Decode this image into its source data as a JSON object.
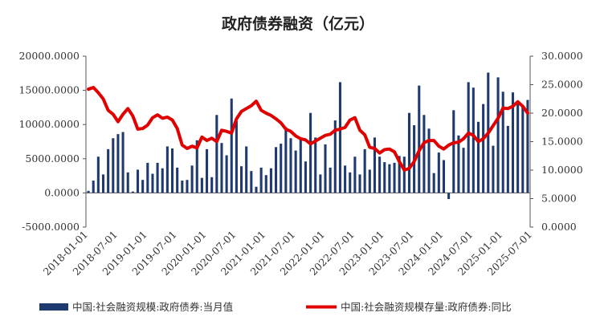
{
  "chart_data": {
    "type": "bar+line",
    "title": "政府债券融资（亿元）",
    "x_tick_labels": [
      "2018-01-01",
      "2018-07-01",
      "2019-01-01",
      "2019-07-01",
      "2020-01-01",
      "2020-07-01",
      "2021-01-01",
      "2021-07-01",
      "2022-01-01",
      "2022-07-01",
      "2023-01-01",
      "2023-07-01",
      "2024-01-01",
      "2024-07-01",
      "2025-01-01",
      "2025-07-01"
    ],
    "y_left": {
      "ticks": [
        "20000.0000",
        "15000.0000",
        "10000.0000",
        "5000.0000",
        "0.0000",
        "-5000.0000"
      ],
      "range": [
        -5000,
        20000
      ]
    },
    "y_right": {
      "ticks": [
        "30.0000",
        "25.0000",
        "20.0000",
        "15.0000",
        "10.0000",
        "5.0000",
        "0.0000"
      ],
      "range": [
        0,
        30
      ]
    },
    "series": [
      {
        "name": "中国:社会融资规模:政府债券:当月值",
        "kind": "bar",
        "axis": "left",
        "color": "#1f3a6e",
        "values": [
          300,
          1800,
          5300,
          2700,
          6400,
          8000,
          8600,
          8900,
          3000,
          200,
          3400,
          1900,
          4400,
          2800,
          4400,
          3600,
          6800,
          6500,
          3700,
          1800,
          1900,
          4000,
          7700,
          2200,
          6400,
          2300,
          11400,
          7300,
          5500,
          13800,
          10500,
          3900,
          6800,
          3200,
          900,
          3700,
          2600,
          3600,
          6700,
          7200,
          9600,
          8000,
          6200,
          7900,
          4600,
          11700,
          8100,
          2700,
          7100,
          3700,
          10600,
          16200,
          4000,
          3000,
          5300,
          2700,
          6400,
          3400,
          8100,
          5300,
          4500,
          4200,
          4400,
          5400,
          5300,
          11700,
          9900,
          15700,
          11400,
          9400,
          2900,
          5900,
          4800,
          -900,
          12100,
          8400,
          6600,
          16200,
          15400,
          10400,
          13000,
          17600,
          6900,
          16900,
          14800,
          9800,
          14700,
          13400,
          12700,
          13600
        ]
      },
      {
        "name": "中国:社会融资规模存量:政府债券:同比",
        "kind": "line",
        "axis": "right",
        "color": "#e00000",
        "values": [
          24.2,
          24.5,
          23.6,
          22.5,
          20.5,
          19.8,
          18.5,
          19.8,
          20.8,
          19.5,
          17.2,
          17.3,
          17.9,
          19.2,
          19.7,
          19.1,
          19.3,
          18.8,
          17.3,
          14.4,
          13.8,
          14.2,
          13.9,
          15.8,
          15.2,
          15.6,
          15.0,
          17.0,
          16.8,
          16.5,
          19.0,
          20.3,
          20.8,
          21.3,
          22.1,
          20.5,
          20.0,
          19.6,
          19.0,
          18.3,
          17.2,
          16.8,
          16.0,
          15.5,
          15.3,
          14.6,
          15.1,
          15.6,
          16.1,
          16.3,
          17.0,
          17.2,
          17.5,
          18.8,
          19.2,
          17.0,
          16.2,
          14.0,
          13.8,
          13.0,
          13.6,
          13.7,
          13.2,
          11.5,
          10.0,
          10.3,
          11.5,
          13.4,
          14.8,
          15.2,
          15.2,
          14.2,
          13.7,
          14.4,
          14.8,
          14.9,
          15.5,
          16.5,
          16.1,
          15.0,
          15.5,
          16.5,
          17.8,
          19.1,
          20.9,
          20.8,
          21.2,
          22.0,
          21.2,
          20.0
        ]
      }
    ],
    "legend_position": "bottom",
    "grid": false
  }
}
